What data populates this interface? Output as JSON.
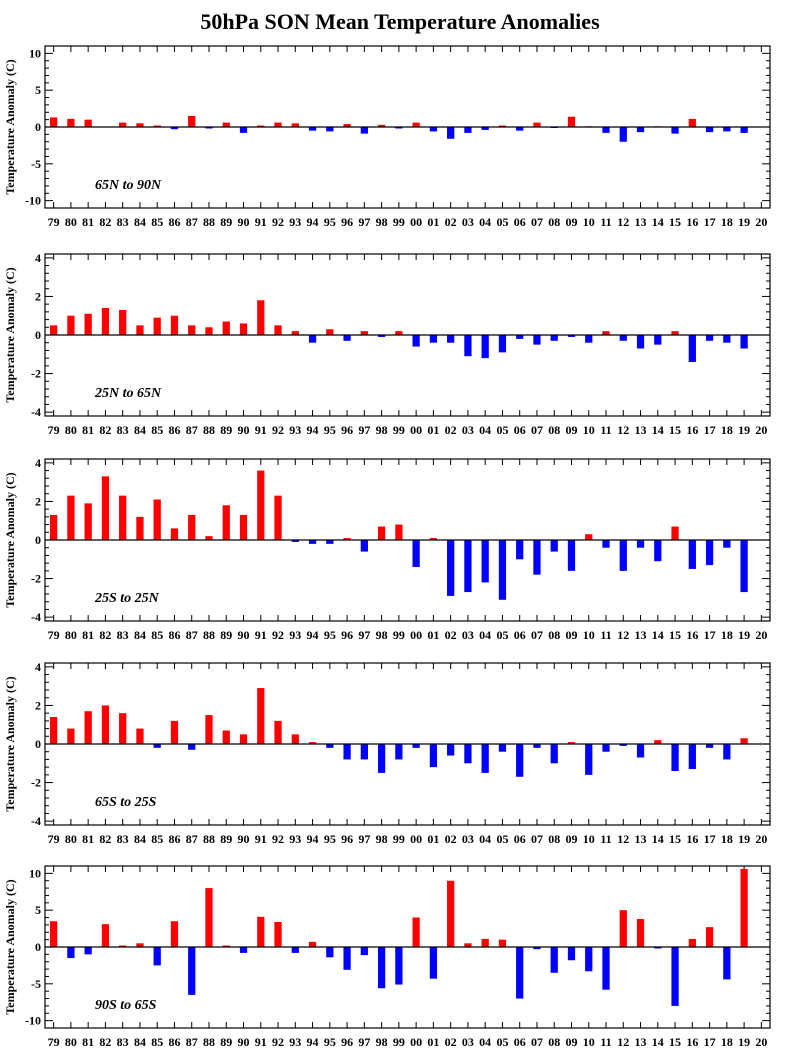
{
  "title": "50hPa SON Mean Temperature Anomalies",
  "colors": {
    "positive": "#ff0000",
    "negative": "#0000ff",
    "axis": "#000000"
  },
  "chart_data": {
    "type": "bar",
    "title": "50hPa SON Mean Temperature Anomalies",
    "categories": [
      "79",
      "80",
      "81",
      "82",
      "83",
      "84",
      "85",
      "86",
      "87",
      "88",
      "89",
      "90",
      "91",
      "92",
      "93",
      "94",
      "95",
      "96",
      "97",
      "98",
      "99",
      "00",
      "01",
      "02",
      "03",
      "04",
      "05",
      "06",
      "07",
      "08",
      "09",
      "10",
      "11",
      "12",
      "13",
      "14",
      "15",
      "16",
      "17",
      "18",
      "19",
      "20"
    ],
    "panels": [
      {
        "label": "65N to 90N",
        "ylabel": "Temperature Anomaly (C)",
        "ylim": [
          -11,
          11
        ],
        "yticks": [
          -10,
          -5,
          0,
          5,
          10
        ],
        "values": [
          1.3,
          1.1,
          1.0,
          0.0,
          0.6,
          0.5,
          0.2,
          -0.3,
          1.5,
          -0.2,
          0.6,
          -0.8,
          0.2,
          0.6,
          0.5,
          -0.5,
          -0.6,
          0.4,
          -0.9,
          0.3,
          -0.2,
          0.6,
          -0.6,
          -1.6,
          -0.8,
          -0.4,
          0.2,
          -0.5,
          0.6,
          -0.1,
          1.4,
          0.1,
          -0.8,
          -2.0,
          -0.7,
          0.1,
          -0.9,
          1.1,
          -0.7,
          -0.6,
          -0.8,
          0.0
        ]
      },
      {
        "label": "25N to 65N",
        "ylabel": "Temperature Anomaly (C)",
        "ylim": [
          -4.2,
          4.2
        ],
        "yticks": [
          -4,
          -2,
          0,
          2,
          4
        ],
        "values": [
          0.5,
          1.0,
          1.1,
          1.4,
          1.3,
          0.5,
          0.9,
          1.0,
          0.5,
          0.4,
          0.7,
          0.6,
          1.8,
          0.5,
          0.2,
          -0.4,
          0.3,
          -0.3,
          0.2,
          -0.1,
          0.2,
          -0.6,
          -0.4,
          -0.4,
          -1.1,
          -1.2,
          -0.9,
          -0.2,
          -0.5,
          -0.3,
          -0.1,
          -0.4,
          0.2,
          -0.3,
          -0.7,
          -0.5,
          0.2,
          -1.4,
          -0.3,
          -0.4,
          -0.7,
          0.0
        ]
      },
      {
        "label": "25S to 25N",
        "ylabel": "Temperature Anomaly (C)",
        "ylim": [
          -4.2,
          4.2
        ],
        "yticks": [
          -4,
          -2,
          0,
          2,
          4
        ],
        "values": [
          1.3,
          2.3,
          1.9,
          3.3,
          2.3,
          1.2,
          2.1,
          0.6,
          1.3,
          0.2,
          1.8,
          1.3,
          3.6,
          2.3,
          -0.1,
          -0.2,
          -0.2,
          0.1,
          -0.6,
          0.7,
          0.8,
          -1.4,
          0.1,
          -2.9,
          -2.7,
          -2.2,
          -3.1,
          -1.0,
          -1.8,
          -0.6,
          -1.6,
          0.3,
          -0.4,
          -1.6,
          -0.4,
          -1.1,
          0.7,
          -1.5,
          -1.3,
          -0.4,
          -2.7,
          0.0
        ]
      },
      {
        "label": "65S to 25S",
        "ylabel": "Temperature Anomaly (C)",
        "ylim": [
          -4.2,
          4.2
        ],
        "yticks": [
          -4,
          -2,
          0,
          2,
          4
        ],
        "values": [
          1.4,
          0.8,
          1.7,
          2.0,
          1.6,
          0.8,
          -0.2,
          1.2,
          -0.3,
          1.5,
          0.7,
          0.5,
          2.9,
          1.2,
          0.5,
          0.1,
          -0.2,
          -0.8,
          -0.8,
          -1.5,
          -0.8,
          -0.2,
          -1.2,
          -0.6,
          -1.0,
          -1.5,
          -0.4,
          -1.7,
          -0.2,
          -1.0,
          0.1,
          -1.6,
          -0.4,
          -0.1,
          -0.7,
          0.2,
          -1.4,
          -1.3,
          -0.2,
          -0.8,
          0.3,
          0.0
        ]
      },
      {
        "label": "90S to 65S",
        "ylabel": "Temperature Anomaly (C)",
        "ylim": [
          -11,
          11
        ],
        "yticks": [
          -10,
          -5,
          0,
          5,
          10
        ],
        "values": [
          3.5,
          -1.5,
          -1.0,
          3.1,
          0.2,
          0.5,
          -2.5,
          3.5,
          -6.5,
          8.0,
          0.2,
          -0.8,
          4.1,
          3.4,
          -0.8,
          0.7,
          -1.4,
          -3.1,
          -1.1,
          -5.6,
          -5.1,
          4.0,
          -4.3,
          9.0,
          0.5,
          1.1,
          1.0,
          -7.0,
          -0.3,
          -3.5,
          -1.8,
          -3.3,
          -5.8,
          5.0,
          3.8,
          -0.2,
          -8.0,
          1.1,
          2.7,
          -4.4,
          10.6,
          0.0
        ]
      }
    ]
  }
}
